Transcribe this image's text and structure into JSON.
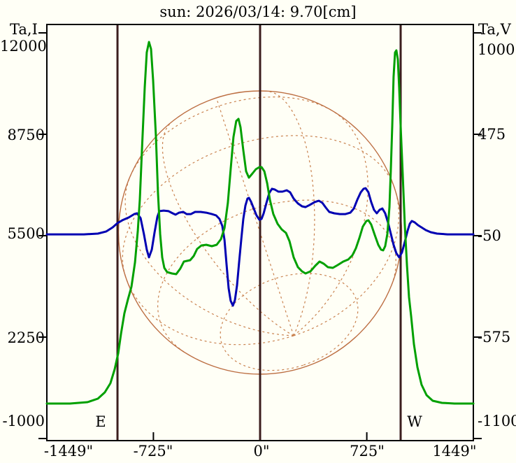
{
  "title": "sun: 2026/03/14: 9.70[cm]",
  "axes": {
    "left": {
      "label": "Ta,I",
      "ticks": [
        "12000",
        "8750",
        "5500",
        "2250",
        "-1000"
      ]
    },
    "right": {
      "label": "Ta,V",
      "ticks": [
        "1000",
        "475",
        "-50",
        "-575",
        "-1100"
      ]
    },
    "bottom": {
      "ticks": [
        "-1449\"",
        "-725\"",
        "0\"",
        "725\"",
        "1449\""
      ]
    },
    "east_limb_label": "E",
    "west_limb_label": "W"
  },
  "colors": {
    "title_text": "#1c1c6e",
    "axis_text": "#000000",
    "frame": "#000000",
    "limb_line": "#3c1e1e",
    "disk_circle": "#bc6e42",
    "disk_grid": "#c9824f",
    "intensity_green": "#00a000",
    "polarization_blue": "#0000b2",
    "background": "#fffff6"
  },
  "chart_data": {
    "type": "line",
    "title": "sun: 2026/03/14: 9.70[cm]",
    "x_unit": "arcsec",
    "x_range": [
      -1449,
      1449
    ],
    "x_ticks_arcsec": [
      -1449,
      -725,
      0,
      725,
      1449
    ],
    "x_minor_ticks_arcsec": [
      -725,
      725
    ],
    "y_left": {
      "label": "Ta,I",
      "ticks": [
        12000,
        8750,
        5500,
        2250,
        -1000
      ]
    },
    "y_right": {
      "label": "Ta,V",
      "ticks": [
        1000,
        475,
        -50,
        -575,
        -1100
      ]
    },
    "grid": false,
    "legend": "none",
    "limb_lines_arcsec": [
      -969,
      0,
      955
    ],
    "solar_disk": {
      "radius_arcsec": 962,
      "lat_lines_deg": [
        -60,
        -30,
        0,
        30,
        60
      ],
      "lon_lines_deg": [
        -90,
        -60,
        -30,
        0,
        30,
        60,
        90
      ],
      "tilt_b_deg": -40,
      "tilt_p_deg": 18
    },
    "series": [
      {
        "name": "Ta,V polarization scan",
        "axis": "right",
        "color": "#0000b2",
        "points": [
          [
            -1449,
            -43
          ],
          [
            -1197,
            -43
          ],
          [
            -1102,
            -39
          ],
          [
            -1045,
            -28
          ],
          [
            -1002,
            -7
          ],
          [
            -969,
            15
          ],
          [
            -936,
            30
          ],
          [
            -893,
            44
          ],
          [
            -855,
            62
          ],
          [
            -836,
            66
          ],
          [
            -812,
            41
          ],
          [
            -789,
            -43
          ],
          [
            -770,
            -122
          ],
          [
            -755,
            -162
          ],
          [
            -736,
            -122
          ],
          [
            -717,
            -32
          ],
          [
            -698,
            48
          ],
          [
            -684,
            77
          ],
          [
            -655,
            80
          ],
          [
            -622,
            77
          ],
          [
            -594,
            66
          ],
          [
            -575,
            59
          ],
          [
            -551,
            69
          ],
          [
            -522,
            73
          ],
          [
            -499,
            62
          ],
          [
            -470,
            62
          ],
          [
            -442,
            73
          ],
          [
            -404,
            73
          ],
          [
            -366,
            69
          ],
          [
            -328,
            62
          ],
          [
            -299,
            55
          ],
          [
            -276,
            37
          ],
          [
            -257,
            1
          ],
          [
            -242,
            -72
          ],
          [
            -228,
            -198
          ],
          [
            -214,
            -322
          ],
          [
            -200,
            -387
          ],
          [
            -185,
            -412
          ],
          [
            -171,
            -383
          ],
          [
            -157,
            -307
          ],
          [
            -143,
            -191
          ],
          [
            -128,
            -68
          ],
          [
            -114,
            37
          ],
          [
            -100,
            106
          ],
          [
            -86,
            142
          ],
          [
            -76,
            146
          ],
          [
            -62,
            127
          ],
          [
            -43,
            91
          ],
          [
            -24,
            55
          ],
          [
            -5,
            33
          ],
          [
            10,
            37
          ],
          [
            24,
            66
          ],
          [
            43,
            120
          ],
          [
            62,
            171
          ],
          [
            81,
            193
          ],
          [
            100,
            189
          ],
          [
            124,
            178
          ],
          [
            152,
            178
          ],
          [
            181,
            185
          ],
          [
            204,
            175
          ],
          [
            228,
            142
          ],
          [
            257,
            117
          ],
          [
            285,
            102
          ],
          [
            309,
            98
          ],
          [
            337,
            109
          ],
          [
            371,
            124
          ],
          [
            399,
            131
          ],
          [
            423,
            120
          ],
          [
            447,
            95
          ],
          [
            470,
            73
          ],
          [
            504,
            66
          ],
          [
            542,
            62
          ],
          [
            580,
            62
          ],
          [
            613,
            69
          ],
          [
            637,
            91
          ],
          [
            660,
            135
          ],
          [
            684,
            175
          ],
          [
            703,
            193
          ],
          [
            717,
            196
          ],
          [
            736,
            175
          ],
          [
            755,
            124
          ],
          [
            774,
            84
          ],
          [
            793,
            66
          ],
          [
            812,
            84
          ],
          [
            831,
            91
          ],
          [
            850,
            66
          ],
          [
            869,
            19
          ],
          [
            888,
            -39
          ],
          [
            907,
            -97
          ],
          [
            926,
            -141
          ],
          [
            945,
            -162
          ],
          [
            964,
            -137
          ],
          [
            983,
            -83
          ],
          [
            1002,
            -25
          ],
          [
            1017,
            12
          ],
          [
            1031,
            26
          ],
          [
            1050,
            19
          ],
          [
            1074,
            4
          ],
          [
            1097,
            -7
          ],
          [
            1126,
            -21
          ],
          [
            1159,
            -32
          ],
          [
            1202,
            -39
          ],
          [
            1273,
            -43
          ],
          [
            1449,
            -43
          ]
        ]
      },
      {
        "name": "Ta,I intensity scan",
        "axis": "left",
        "color": "#00a000",
        "points": [
          [
            -1449,
            120
          ],
          [
            -1292,
            120
          ],
          [
            -1173,
            166
          ],
          [
            -1102,
            278
          ],
          [
            -1055,
            480
          ],
          [
            -1017,
            770
          ],
          [
            -988,
            1218
          ],
          [
            -964,
            1734
          ],
          [
            -945,
            2362
          ],
          [
            -922,
            3012
          ],
          [
            -898,
            3460
          ],
          [
            -874,
            3864
          ],
          [
            -850,
            4648
          ],
          [
            -831,
            5657
          ],
          [
            -817,
            6665
          ],
          [
            -803,
            8234
          ],
          [
            -784,
            10251
          ],
          [
            -770,
            11372
          ],
          [
            -755,
            11708
          ],
          [
            -741,
            11484
          ],
          [
            -727,
            10475
          ],
          [
            -708,
            8683
          ],
          [
            -694,
            6890
          ],
          [
            -679,
            5545
          ],
          [
            -665,
            4805
          ],
          [
            -651,
            4469
          ],
          [
            -632,
            4335
          ],
          [
            -599,
            4290
          ],
          [
            -570,
            4267
          ],
          [
            -542,
            4447
          ],
          [
            -518,
            4671
          ],
          [
            -475,
            4715
          ],
          [
            -451,
            4850
          ],
          [
            -428,
            5074
          ],
          [
            -399,
            5186
          ],
          [
            -366,
            5209
          ],
          [
            -328,
            5164
          ],
          [
            -295,
            5209
          ],
          [
            -266,
            5388
          ],
          [
            -242,
            5747
          ],
          [
            -219,
            6553
          ],
          [
            -200,
            7629
          ],
          [
            -181,
            8660
          ],
          [
            -162,
            9176
          ],
          [
            -147,
            9243
          ],
          [
            -133,
            8974
          ],
          [
            -114,
            8234
          ],
          [
            -95,
            7562
          ],
          [
            -76,
            7360
          ],
          [
            -52,
            7495
          ],
          [
            -29,
            7629
          ],
          [
            -5,
            7696
          ],
          [
            10,
            7696
          ],
          [
            29,
            7562
          ],
          [
            48,
            7181
          ],
          [
            67,
            6643
          ],
          [
            90,
            6195
          ],
          [
            119,
            5881
          ],
          [
            147,
            5702
          ],
          [
            176,
            5590
          ],
          [
            200,
            5321
          ],
          [
            228,
            4805
          ],
          [
            257,
            4491
          ],
          [
            285,
            4357
          ],
          [
            309,
            4290
          ],
          [
            342,
            4357
          ],
          [
            375,
            4536
          ],
          [
            404,
            4671
          ],
          [
            432,
            4603
          ],
          [
            461,
            4491
          ],
          [
            494,
            4469
          ],
          [
            527,
            4558
          ],
          [
            565,
            4671
          ],
          [
            599,
            4738
          ],
          [
            627,
            4872
          ],
          [
            651,
            5097
          ],
          [
            675,
            5433
          ],
          [
            698,
            5791
          ],
          [
            722,
            5971
          ],
          [
            736,
            5993
          ],
          [
            755,
            5859
          ],
          [
            779,
            5522
          ],
          [
            803,
            5209
          ],
          [
            822,
            5052
          ],
          [
            836,
            5030
          ],
          [
            850,
            5164
          ],
          [
            865,
            5567
          ],
          [
            879,
            6419
          ],
          [
            888,
            7562
          ],
          [
            898,
            9019
          ],
          [
            907,
            10588
          ],
          [
            917,
            11372
          ],
          [
            926,
            11440
          ],
          [
            936,
            11148
          ],
          [
            945,
            10251
          ],
          [
            955,
            9019
          ],
          [
            969,
            7450
          ],
          [
            983,
            5881
          ],
          [
            998,
            4536
          ],
          [
            1012,
            3528
          ],
          [
            1026,
            2922
          ],
          [
            1045,
            2026
          ],
          [
            1069,
            1286
          ],
          [
            1097,
            726
          ],
          [
            1131,
            390
          ],
          [
            1173,
            211
          ],
          [
            1235,
            143
          ],
          [
            1321,
            120
          ],
          [
            1449,
            120
          ]
        ]
      }
    ]
  }
}
